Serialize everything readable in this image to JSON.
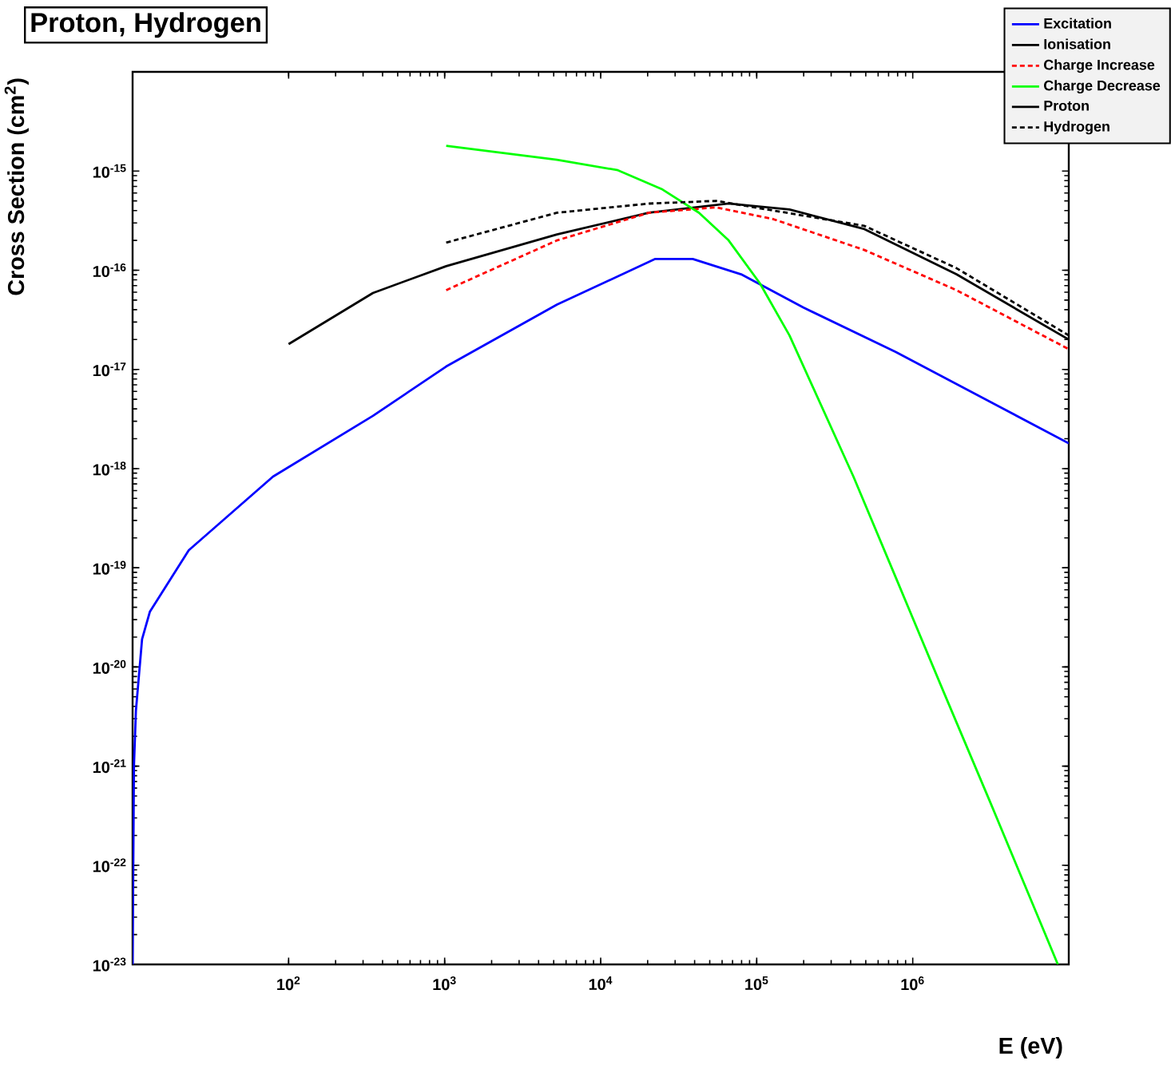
{
  "chart_data": {
    "type": "line",
    "title": "Proton, Hydrogen",
    "xlabel": "E (eV)",
    "ylabel": "Cross Section (cm$^{2}$)",
    "log": "xy",
    "xlim": [
      10,
      10000000
    ],
    "ylim": [
      1e-23,
      1e-14
    ],
    "xticks": [
      {
        "value": 100,
        "label": "10$^{2}$"
      },
      {
        "value": 1000,
        "label": "10$^{3}$"
      },
      {
        "value": 10000,
        "label": "10$^{4}$"
      },
      {
        "value": 100000,
        "label": "10$^{5}$"
      },
      {
        "value": 1000000,
        "label": "10$^{6}$"
      }
    ],
    "yticks": [
      {
        "value": 1e-23,
        "label": "10$^{-23}$"
      },
      {
        "value": 1e-22,
        "label": "10$^{-22}$"
      },
      {
        "value": 1e-21,
        "label": "10$^{-21}$"
      },
      {
        "value": 1e-20,
        "label": "10$^{-20}$"
      },
      {
        "value": 1e-19,
        "label": "10$^{-19}$"
      },
      {
        "value": 1e-18,
        "label": "10$^{-18}$"
      },
      {
        "value": 1e-17,
        "label": "10$^{-17}$"
      },
      {
        "value": 1e-16,
        "label": "10$^{-16}$"
      },
      {
        "value": 1e-15,
        "label": "10$^{-15}$"
      }
    ],
    "legend": "top right",
    "marker": "none",
    "grid": false,
    "series": [
      {
        "name": "Excitation",
        "color": "#0000ff",
        "line_style": "solid",
        "x": [
          10,
          10.2,
          10.5,
          11.5,
          12.9,
          22.9,
          79.4,
          347,
          1023,
          5248,
          22387,
          38905,
          79433,
          199526,
          776247,
          10000000
        ],
        "values": [
          1e-23,
          1e-21,
          3.6e-21,
          1.9e-20,
          3.6e-20,
          1.5e-19,
          8.3e-19,
          3.4e-18,
          1.07e-17,
          4.5e-17,
          1.3e-16,
          1.3e-16,
          9.1e-17,
          4.2e-17,
          1.5e-17,
          1.8e-18
        ]
      },
      {
        "name": "Ionisation",
        "color": "#000000",
        "line_style": "solid",
        "x": [
          100,
          347,
          1023,
          5248,
          20417,
          66069,
          162181,
          489779,
          1905461,
          10000000
        ],
        "values": [
          1.8e-17,
          5.9e-17,
          1.1e-16,
          2.3e-16,
          3.8e-16,
          4.7e-16,
          4.1e-16,
          2.6e-16,
          9.1e-17,
          2e-17
        ]
      },
      {
        "name": "Charge Increase",
        "color": "#ff0000",
        "line_style": "dashed",
        "x": [
          1023,
          5248,
          20417,
          54954,
          125893,
          489779,
          1905461,
          10000000
        ],
        "values": [
          6.3e-17,
          2e-16,
          3.8e-16,
          4.3e-16,
          3.3e-16,
          1.6e-16,
          6.3e-17,
          1.6e-17
        ]
      },
      {
        "name": "Charge Decrease",
        "color": "#00ff00",
        "line_style": "solid",
        "x": [
          1023,
          5248,
          12882,
          24547,
          42658,
          66069,
          104713,
          162181,
          416869,
          794328,
          1584893,
          3162278,
          6309573,
          8511380
        ],
        "values": [
          1.8e-15,
          1.3e-15,
          1.02e-15,
          6.6e-16,
          3.8e-16,
          2e-16,
          7.4e-17,
          2.2e-17,
          8.3e-19,
          7.4e-20,
          5.5e-21,
          4.2e-22,
          3.1e-23,
          1e-23
        ]
      },
      {
        "name": "Proton",
        "color": "#000000",
        "line_style": "solid"
      },
      {
        "name": "Hydrogen",
        "color": "#000000",
        "line_style": "dashed",
        "x": [
          1023,
          5248,
          20417,
          54954,
          489779,
          1905461,
          10000000
        ],
        "values": [
          1.9e-16,
          3.8e-16,
          4.7e-16,
          5e-16,
          2.8e-16,
          1.05e-16,
          2.2e-17
        ]
      }
    ]
  }
}
